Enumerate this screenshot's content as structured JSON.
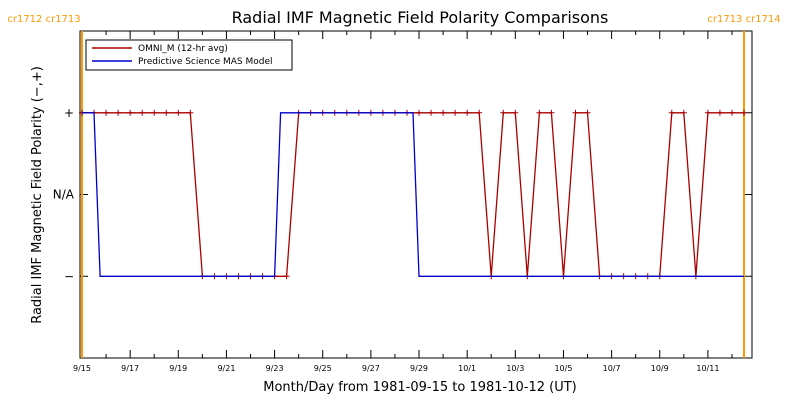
{
  "chart_data": {
    "type": "line",
    "title": "Radial IMF Magnetic Field Polarity Comparisons",
    "xlabel": "Month/Day from 1981-09-15 to 1981-10-12 (UT)",
    "ylabel": "Radial IMF Magnetic Field Polarity (−,+)",
    "y_ticks": [
      {
        "label": "+",
        "value": 1
      },
      {
        "label": "N/A",
        "value": 0
      },
      {
        "label": "−",
        "value": -1
      }
    ],
    "ylim": [
      -2,
      2
    ],
    "xlim": [
      0,
      27.5
    ],
    "x_ticks": [
      "9/15",
      "9/17",
      "9/19",
      "9/21",
      "9/23",
      "9/25",
      "9/27",
      "9/29",
      "10/1",
      "10/3",
      "10/5",
      "10/7",
      "10/9",
      "10/11"
    ],
    "rotation_labels": {
      "left": "cr1712 cr1713",
      "right": "cr1713 cr1714",
      "left_day": 0.0,
      "right_day": 27.5,
      "color": "#ff9900"
    },
    "legend_position": "top-left",
    "series": [
      {
        "name": "OMNI_M (12-hr avg)",
        "color": "#aa0000",
        "markers": "plus",
        "x": [
          0,
          0.5,
          1,
          1.5,
          2,
          2.5,
          3,
          3.5,
          4,
          4.5,
          5,
          5.5,
          6,
          6.5,
          7,
          7.5,
          8,
          8.5,
          9,
          9.5,
          10,
          10.5,
          11,
          11.5,
          12,
          12.5,
          13,
          13.5,
          14,
          14.5,
          15,
          15.5,
          16,
          16.5,
          17,
          17.5,
          18,
          18.5,
          19,
          19.5,
          20,
          20.5,
          21,
          21.5,
          22,
          22.5,
          23,
          23.5,
          24,
          24.5,
          25,
          25.5,
          26,
          26.5,
          27,
          27.5
        ],
        "y": [
          1,
          1,
          1,
          1,
          1,
          1,
          1,
          1,
          1,
          1,
          -1,
          -1,
          -1,
          -1,
          -1,
          -1,
          -1,
          -1,
          1,
          1,
          1,
          1,
          1,
          1,
          1,
          1,
          1,
          1,
          1,
          1,
          1,
          1,
          1,
          1,
          -1,
          1,
          1,
          -1,
          1,
          1,
          -1,
          1,
          1,
          -1,
          -1,
          -1,
          -1,
          -1,
          -1,
          1,
          1,
          -1,
          1,
          1,
          1,
          1
        ]
      },
      {
        "name": "Predictive Science MAS Model",
        "color": "#0000cc",
        "markers": "none",
        "x": [
          0,
          0.5,
          0.75,
          8,
          8.25,
          13.75,
          14,
          27.5
        ],
        "y": [
          1,
          1,
          -1,
          -1,
          1,
          1,
          -1,
          -1
        ]
      }
    ]
  }
}
